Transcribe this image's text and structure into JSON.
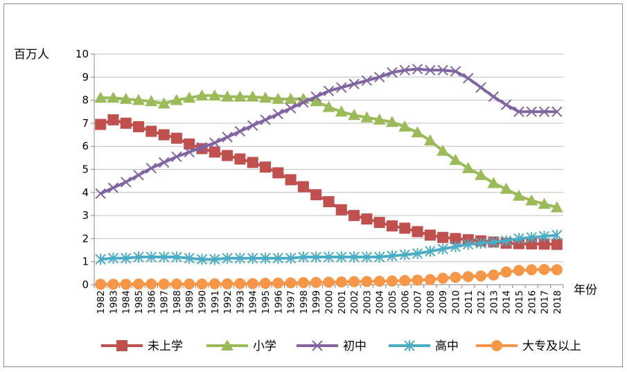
{
  "chart_data": {
    "type": "line",
    "ylabel": "百万人",
    "xlabel": "年份",
    "ylim": [
      0,
      10
    ],
    "yticks": [
      0,
      1,
      2,
      3,
      4,
      5,
      6,
      7,
      8,
      9,
      10
    ],
    "grid": "horizontal",
    "legend_position": "bottom",
    "x": [
      "1982",
      "1983",
      "1984",
      "1985",
      "1986",
      "1987",
      "1988",
      "1989",
      "1990",
      "1991",
      "1992",
      "1993",
      "1994",
      "1995",
      "1996",
      "1997",
      "1998",
      "1999",
      "2000",
      "2001",
      "2002",
      "2003",
      "2004",
      "2005",
      "2006",
      "2007",
      "2008",
      "2009",
      "2010",
      "2011",
      "2012",
      "2013",
      "2014",
      "2015",
      "2016",
      "2017",
      "2018"
    ],
    "series": [
      {
        "name": "未上学",
        "color": "#c0504d",
        "marker": "square",
        "values": [
          6.95,
          7.15,
          7.0,
          6.85,
          6.65,
          6.5,
          6.35,
          6.1,
          5.9,
          5.75,
          5.6,
          5.45,
          5.3,
          5.1,
          4.85,
          4.55,
          4.25,
          3.9,
          3.6,
          3.25,
          3.0,
          2.85,
          2.7,
          2.55,
          2.45,
          2.3,
          2.15,
          2.05,
          2.0,
          1.95,
          1.9,
          1.85,
          1.8,
          1.78,
          1.77,
          1.76,
          1.75
        ]
      },
      {
        "name": "小学",
        "color": "#9bbb59",
        "marker": "triangle",
        "values": [
          8.1,
          8.1,
          8.05,
          8.0,
          7.95,
          7.85,
          8.0,
          8.1,
          8.2,
          8.2,
          8.15,
          8.15,
          8.15,
          8.1,
          8.05,
          8.05,
          8.05,
          7.95,
          7.7,
          7.5,
          7.35,
          7.25,
          7.15,
          7.05,
          6.85,
          6.6,
          6.25,
          5.8,
          5.4,
          5.05,
          4.75,
          4.4,
          4.15,
          3.85,
          3.65,
          3.5,
          3.35
        ]
      },
      {
        "name": "初中",
        "color": "#8064a2",
        "marker": "x",
        "values": [
          3.95,
          4.2,
          4.45,
          4.75,
          5.05,
          5.3,
          5.55,
          5.75,
          5.95,
          6.15,
          6.4,
          6.65,
          6.9,
          7.15,
          7.4,
          7.65,
          7.9,
          8.15,
          8.4,
          8.55,
          8.7,
          8.85,
          9.0,
          9.2,
          9.3,
          9.35,
          9.3,
          9.3,
          9.25,
          8.95,
          8.55,
          8.15,
          7.8,
          7.5,
          7.5,
          7.5,
          7.5
        ]
      },
      {
        "name": "高中",
        "color": "#4bacc6",
        "marker": "asterisk",
        "values": [
          1.1,
          1.15,
          1.15,
          1.2,
          1.2,
          1.2,
          1.2,
          1.15,
          1.1,
          1.1,
          1.15,
          1.15,
          1.15,
          1.15,
          1.15,
          1.15,
          1.2,
          1.2,
          1.2,
          1.2,
          1.2,
          1.2,
          1.2,
          1.25,
          1.3,
          1.35,
          1.45,
          1.55,
          1.65,
          1.75,
          1.8,
          1.85,
          1.9,
          2.0,
          2.05,
          2.1,
          2.15
        ]
      },
      {
        "name": "大专及以上",
        "color": "#f79646",
        "marker": "circle",
        "values": [
          0.02,
          0.02,
          0.02,
          0.03,
          0.03,
          0.03,
          0.03,
          0.03,
          0.03,
          0.04,
          0.04,
          0.05,
          0.05,
          0.06,
          0.07,
          0.08,
          0.09,
          0.1,
          0.11,
          0.12,
          0.13,
          0.14,
          0.15,
          0.16,
          0.18,
          0.2,
          0.22,
          0.28,
          0.32,
          0.35,
          0.38,
          0.42,
          0.55,
          0.62,
          0.65,
          0.66,
          0.65
        ]
      }
    ]
  }
}
